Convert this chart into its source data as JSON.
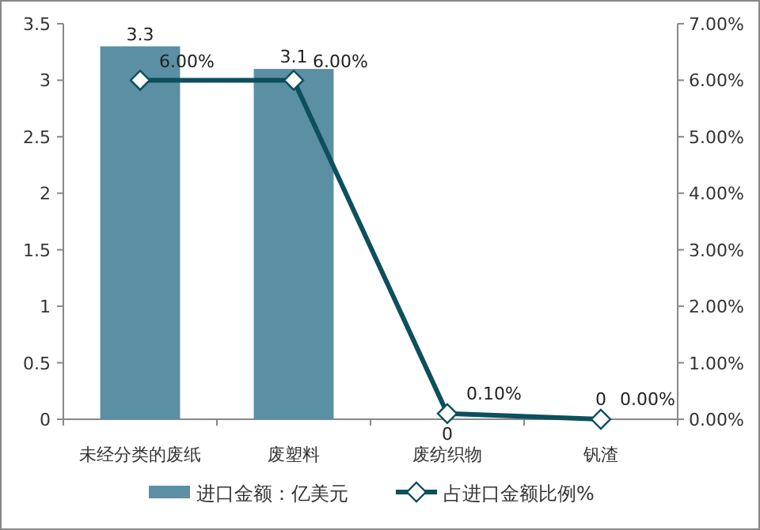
{
  "chart_data": {
    "type": "bar",
    "categories": [
      "未经分类的废纸",
      "废塑料",
      "废纺织物",
      "钒渣"
    ],
    "series": [
      {
        "name": "进口金额：亿美元",
        "color": "#5b8fa3",
        "values": [
          3.3,
          3.1,
          0,
          0
        ],
        "value_labels": [
          "3.3",
          "3.1",
          "0",
          "0"
        ]
      },
      {
        "name": "占进口金额比例%",
        "type": "line",
        "axis": "y2",
        "color": "#0d4f5c",
        "marker": "diamond",
        "values": [
          6,
          6,
          0.1,
          0
        ],
        "value_labels": [
          "6.00%",
          "6.00%",
          "0.10%",
          "0.00%"
        ]
      }
    ],
    "ylim": [
      0,
      3.5
    ],
    "yticks": [
      0,
      0.5,
      1,
      1.5,
      2,
      2.5,
      3,
      3.5
    ],
    "y2lim": [
      0,
      7
    ],
    "y2ticks": [
      {
        "value": 0,
        "label": "0.00%"
      },
      {
        "value": 1,
        "label": "1.00%"
      },
      {
        "value": 2,
        "label": "2.00%"
      },
      {
        "value": 3,
        "label": "3.00%"
      },
      {
        "value": 4,
        "label": "4.00%"
      },
      {
        "value": 5,
        "label": "5.00%"
      },
      {
        "value": 6,
        "label": "6.00%"
      },
      {
        "value": 7,
        "label": "7.00%"
      }
    ],
    "legend": "bottom"
  }
}
